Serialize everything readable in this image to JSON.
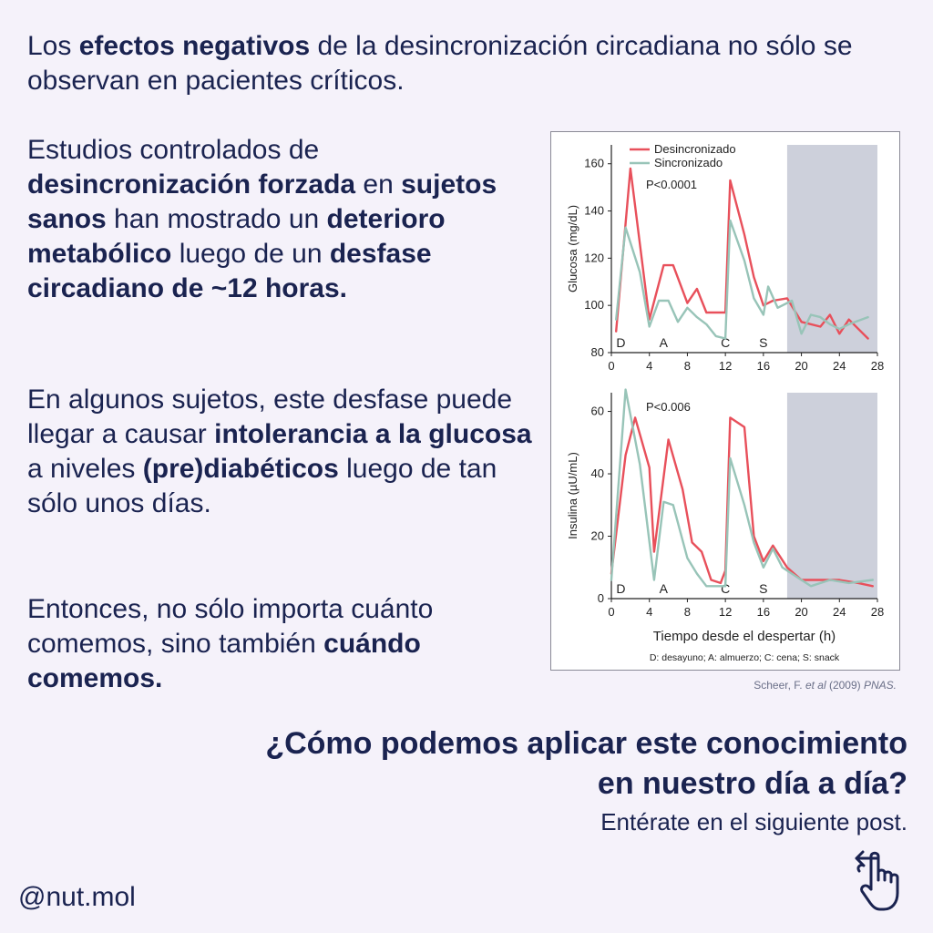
{
  "intro": {
    "t1": "Los ",
    "b1": "efectos negativos",
    "t2": " de la desincronización circadiana no sólo se observan en pacientes críticos."
  },
  "p1": {
    "t1": "Estudios controlados de ",
    "b1": "desincronización forzada",
    "t2": " en ",
    "b2": "sujetos sanos",
    "t3": " han mostrado un ",
    "b3": "deterioro metabólico",
    "t4": " luego de un ",
    "b4": "desfase circadiano de ~12 horas."
  },
  "p2": {
    "t1": "En algunos sujetos, este desfase puede llegar a causar ",
    "b1": "intolerancia a la glucosa",
    "t2": " a niveles ",
    "b2": "(pre)diabéticos",
    "t3": " luego de tan sólo unos días."
  },
  "p3": {
    "t1": "Entonces, no sólo importa cuánto comemos, sino también ",
    "b1": "cuándo comemos."
  },
  "citation": {
    "author": "Scheer, F. ",
    "etal": "et al",
    "year": " (2009) ",
    "journal": "PNAS."
  },
  "question": "¿Cómo podemos aplicar este conocimiento en nuestro día a día?",
  "cta": "Entérate en el siguiente post.",
  "handle": "@nut.mol",
  "icons": {
    "swipe": "hand-swipe-left-icon"
  },
  "colors": {
    "desincronizado": "#e8505b",
    "sincronizado": "#98c4b8",
    "shade": "#cdd0db",
    "text": "#1a2350"
  },
  "chart_data": [
    {
      "type": "line",
      "ylabel": "Glucosa (mg/dL)",
      "xlabel": "",
      "xlim": [
        0,
        28
      ],
      "ylim": [
        80,
        168
      ],
      "xticks": [
        0,
        4,
        8,
        12,
        16,
        20,
        24,
        28
      ],
      "yticks": [
        80,
        100,
        120,
        140,
        160
      ],
      "annotation": "P<0.0001",
      "shaded_from_x": 18.5,
      "meal_markers": [
        {
          "x": 1,
          "label": "D"
        },
        {
          "x": 5.5,
          "label": "A"
        },
        {
          "x": 12,
          "label": "C"
        },
        {
          "x": 16,
          "label": "S"
        }
      ],
      "legend_position": "top-left",
      "series": [
        {
          "name": "Desincronizado",
          "color": "#e8505b",
          "points": [
            [
              0.5,
              89
            ],
            [
              2,
              158
            ],
            [
              4,
              94
            ],
            [
              5.5,
              117
            ],
            [
              6.5,
              117
            ],
            [
              8,
              101
            ],
            [
              9,
              107
            ],
            [
              10,
              97
            ],
            [
              11,
              97
            ],
            [
              12,
              97
            ],
            [
              12.5,
              153
            ],
            [
              14,
              130
            ],
            [
              15,
              112
            ],
            [
              16,
              100
            ],
            [
              17,
              102
            ],
            [
              18.5,
              103
            ],
            [
              20,
              93
            ],
            [
              22,
              91
            ],
            [
              23,
              96
            ],
            [
              24,
              88
            ],
            [
              25,
              94
            ],
            [
              27,
              86
            ]
          ]
        },
        {
          "name": "Sincronizado",
          "color": "#98c4b8",
          "points": [
            [
              0.5,
              94
            ],
            [
              1.5,
              133
            ],
            [
              3,
              114
            ],
            [
              4,
              91
            ],
            [
              5,
              102
            ],
            [
              6,
              102
            ],
            [
              7,
              93
            ],
            [
              8,
              99
            ],
            [
              9,
              95
            ],
            [
              10,
              92
            ],
            [
              11,
              87
            ],
            [
              12,
              86
            ],
            [
              12.5,
              136
            ],
            [
              14,
              119
            ],
            [
              15,
              103
            ],
            [
              16,
              96
            ],
            [
              16.5,
              108
            ],
            [
              17.5,
              99
            ],
            [
              19,
              102
            ],
            [
              20,
              88
            ],
            [
              21,
              96
            ],
            [
              22,
              95
            ],
            [
              23,
              92
            ],
            [
              24,
              90
            ],
            [
              25,
              92
            ],
            [
              27,
              95
            ]
          ]
        }
      ]
    },
    {
      "type": "line",
      "ylabel": "Insulina (µU/mL)",
      "xlabel": "Tiempo desde el despertar (h)",
      "xlim": [
        0,
        28
      ],
      "ylim": [
        0,
        66
      ],
      "xticks": [
        0,
        4,
        8,
        12,
        16,
        20,
        24,
        28
      ],
      "yticks": [
        0,
        20,
        40,
        60
      ],
      "annotation": "P<0.006",
      "shaded_from_x": 18.5,
      "meal_markers": [
        {
          "x": 1,
          "label": "D"
        },
        {
          "x": 5.5,
          "label": "A"
        },
        {
          "x": 12,
          "label": "C"
        },
        {
          "x": 16,
          "label": "S"
        }
      ],
      "footnote": "D: desayuno; A: almuerzo; C: cena; S: snack",
      "series": [
        {
          "name": "Desincronizado",
          "color": "#e8505b",
          "points": [
            [
              0,
              8
            ],
            [
              1.5,
              46
            ],
            [
              2.5,
              58
            ],
            [
              4,
              42
            ],
            [
              4.5,
              15
            ],
            [
              6,
              51
            ],
            [
              7.5,
              35
            ],
            [
              8.5,
              18
            ],
            [
              9.5,
              15
            ],
            [
              10.5,
              6
            ],
            [
              11.5,
              5
            ],
            [
              12,
              9
            ],
            [
              12.5,
              58
            ],
            [
              14,
              55
            ],
            [
              15,
              20
            ],
            [
              16,
              12
            ],
            [
              17,
              17
            ],
            [
              18.5,
              10
            ],
            [
              20,
              6
            ],
            [
              22,
              6
            ],
            [
              24,
              6
            ],
            [
              26,
              5
            ],
            [
              27.5,
              4
            ]
          ]
        },
        {
          "name": "Sincronizado",
          "color": "#98c4b8",
          "points": [
            [
              0,
              6
            ],
            [
              1.5,
              67
            ],
            [
              3,
              43
            ],
            [
              4.5,
              6
            ],
            [
              5.5,
              31
            ],
            [
              6.5,
              30
            ],
            [
              8,
              13
            ],
            [
              9,
              8
            ],
            [
              10,
              4
            ],
            [
              11,
              4
            ],
            [
              12,
              4
            ],
            [
              12.5,
              45
            ],
            [
              14,
              30
            ],
            [
              15,
              18
            ],
            [
              16,
              10
            ],
            [
              17,
              16
            ],
            [
              18,
              10
            ],
            [
              19,
              8
            ],
            [
              21,
              4
            ],
            [
              23,
              6
            ],
            [
              25,
              5
            ],
            [
              27.5,
              6
            ]
          ]
        }
      ]
    }
  ]
}
